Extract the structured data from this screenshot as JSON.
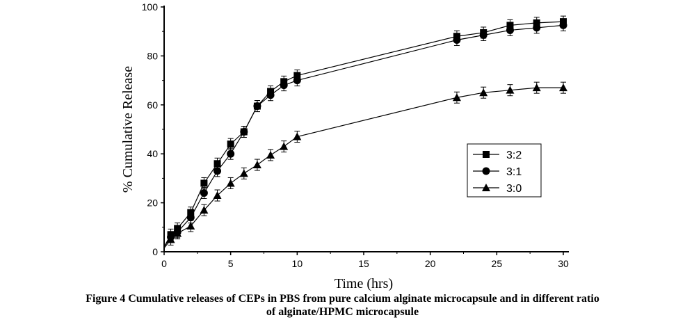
{
  "chart_data": {
    "type": "line",
    "xlabel": "Time (hrs)",
    "ylabel": "% Cumulative Release",
    "xlim": [
      0,
      30
    ],
    "ylim": [
      0,
      100
    ],
    "xticks": [
      0,
      5,
      10,
      15,
      20,
      25,
      30
    ],
    "yticks": [
      0,
      20,
      40,
      60,
      80,
      100
    ],
    "legend_position": "center-right",
    "x": [
      0,
      0.5,
      1,
      2,
      3,
      4,
      5,
      6,
      7,
      8,
      9,
      10,
      22,
      24,
      26,
      28,
      30
    ],
    "series": [
      {
        "name": "3:2",
        "marker": "square",
        "values": [
          2,
          7,
          9.5,
          16,
          28,
          36,
          44,
          49,
          59.5,
          65.5,
          69.5,
          72,
          88,
          89.5,
          92.5,
          93.5,
          94
        ]
      },
      {
        "name": "3:1",
        "marker": "circle",
        "values": [
          2,
          6,
          8,
          14,
          24,
          33,
          40,
          49,
          59.5,
          64,
          68,
          70,
          86.5,
          88.5,
          90.5,
          91.5,
          92.5
        ]
      },
      {
        "name": "3:0",
        "marker": "triangle",
        "values": [
          1.5,
          5,
          7.5,
          10.5,
          17,
          23,
          28,
          32,
          35.5,
          39.5,
          43,
          47,
          63,
          65,
          66,
          67,
          67
        ]
      }
    ]
  },
  "caption": {
    "line1": "Figure 4 Cumulative releases of CEPs in PBS from pure calcium alginate microcapsule and in different ratio",
    "line2": "of alginate/HPMC microcapsule"
  }
}
